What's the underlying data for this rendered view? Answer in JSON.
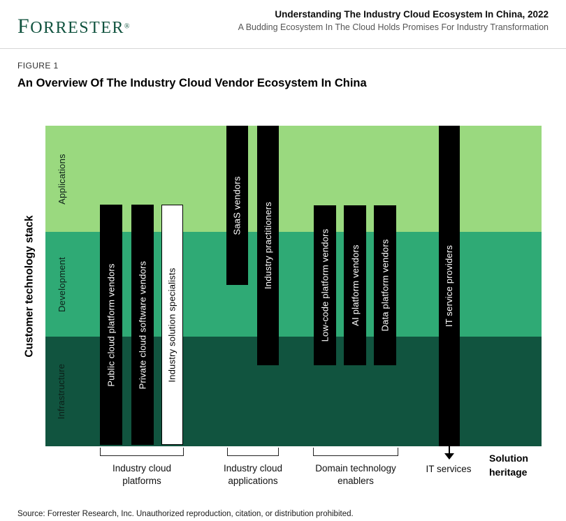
{
  "header": {
    "logo_first": "F",
    "logo_rest": "ORRESTER",
    "logo_mark": "®",
    "title": "Understanding The Industry Cloud Ecosystem In China, 2022",
    "subtitle": "A Budding Ecosystem In The Cloud Holds Promises For Industry Transformation"
  },
  "figure": {
    "label": "FIGURE 1",
    "title": "An Overview Of The Industry Cloud Vendor Ecosystem In China"
  },
  "chart_data": {
    "type": "diagram",
    "y_axis_label": "Customer technology stack",
    "layers": [
      {
        "label": "Applications",
        "color": "#9ad97f"
      },
      {
        "label": "Development",
        "color": "#2faa75"
      },
      {
        "label": "Infrastructure",
        "color": "#11543f"
      }
    ],
    "vendor_bars": [
      {
        "label": "Public cloud platform vendors",
        "fill": "black",
        "group": "Industry cloud platforms",
        "extent": "upper applications through infrastructure"
      },
      {
        "label": "Private cloud software vendors",
        "fill": "black",
        "group": "Industry cloud platforms",
        "extent": "upper applications through infrastructure"
      },
      {
        "label": "Industry solution specialists",
        "fill": "white",
        "group": "Industry cloud platforms",
        "extent": "upper applications through infrastructure"
      },
      {
        "label": "SaaS vendors",
        "fill": "black",
        "group": "Industry cloud applications",
        "extent": "top of applications to mid development"
      },
      {
        "label": "Industry practitioners",
        "fill": "black",
        "group": "Industry cloud applications",
        "extent": "top of applications to upper infrastructure"
      },
      {
        "label": "Low-code platform vendors",
        "fill": "black",
        "group": "Domain technology enablers",
        "extent": "upper applications to upper infrastructure"
      },
      {
        "label": "AI platform vendors",
        "fill": "black",
        "group": "Domain technology enablers",
        "extent": "upper applications to upper infrastructure"
      },
      {
        "label": "Data platform vendors",
        "fill": "black",
        "group": "Domain technology enablers",
        "extent": "upper applications to upper infrastructure"
      },
      {
        "label": "IT service providers",
        "fill": "black",
        "group": "IT services",
        "extent": "full stack, applications through infrastructure"
      }
    ],
    "groups": [
      {
        "label": "Industry cloud platforms",
        "marker": "bracket"
      },
      {
        "label": "Industry cloud applications",
        "marker": "bracket"
      },
      {
        "label": "Domain technology enablers",
        "marker": "bracket"
      },
      {
        "label": "IT services",
        "marker": "arrow"
      }
    ],
    "solution_heritage": "Solution\nheritage"
  },
  "source": "Source: Forrester Research, Inc. Unauthorized reproduction, citation, or distribution prohibited."
}
